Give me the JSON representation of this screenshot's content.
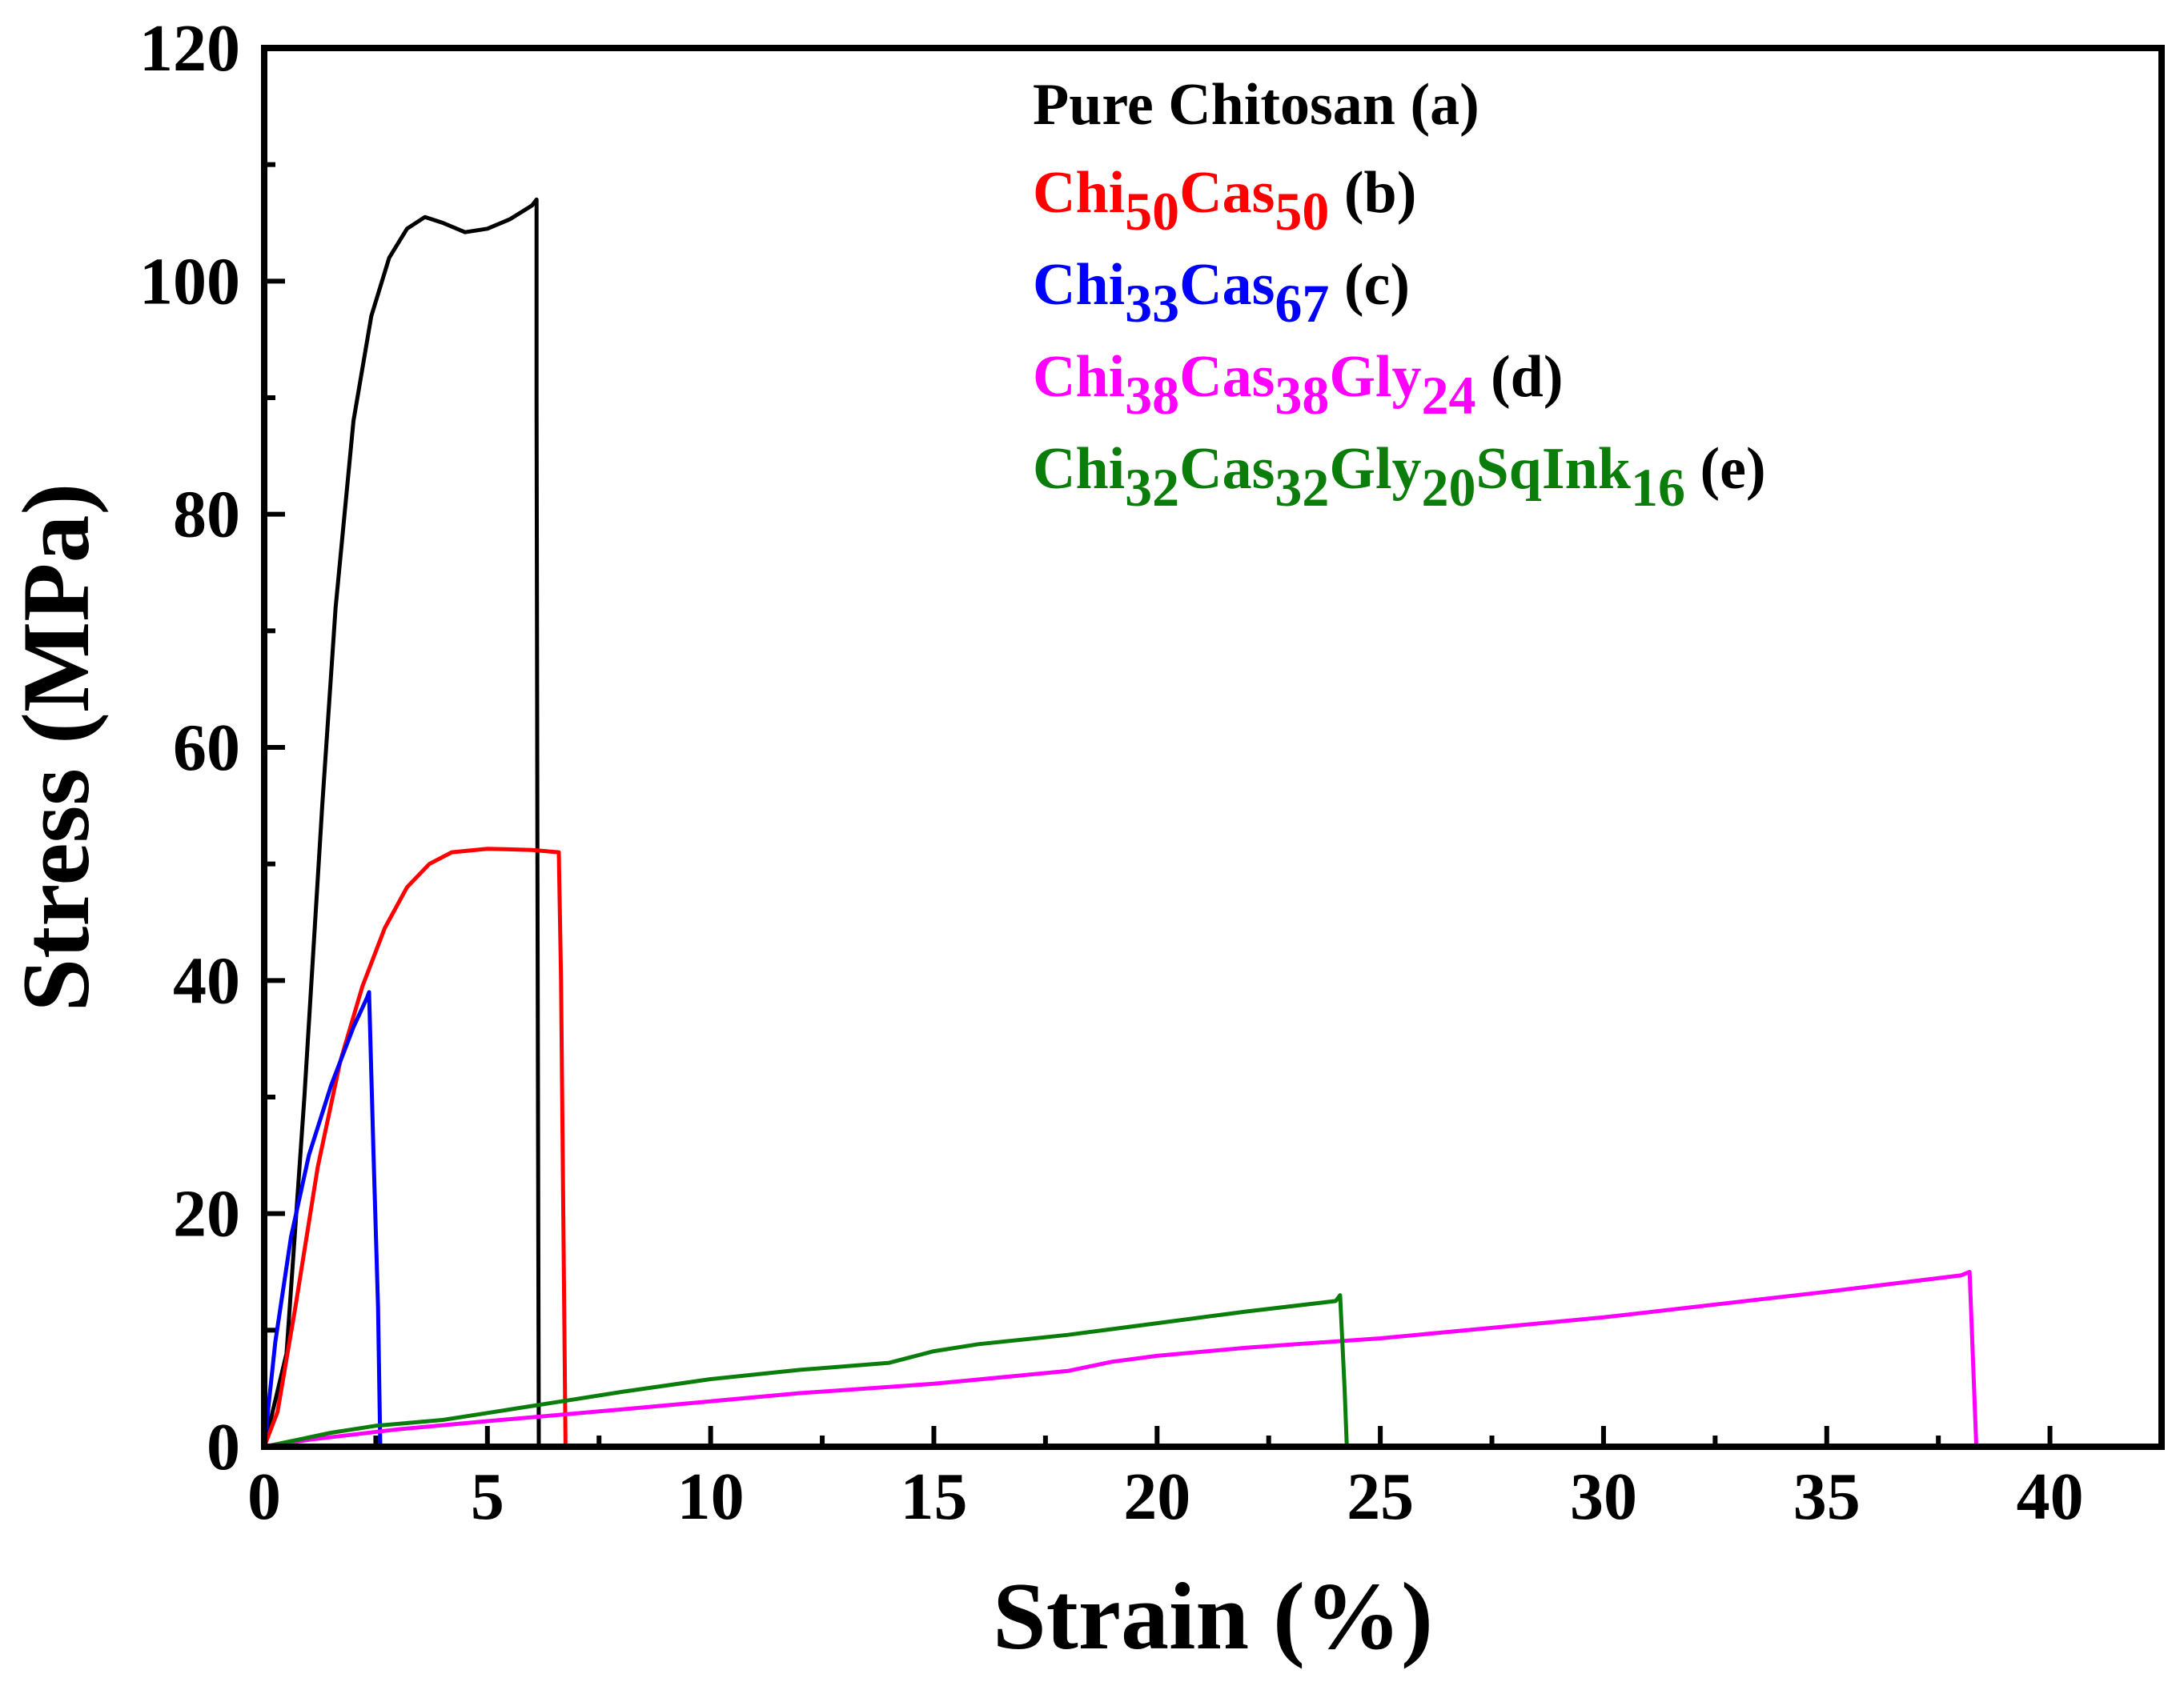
{
  "chart_data": {
    "type": "line",
    "title": "",
    "xlabel": "Strain (%)",
    "ylabel": "Stress (MPa)",
    "xlim": [
      0,
      42.5
    ],
    "ylim": [
      0,
      120
    ],
    "x_ticks": [
      0,
      5,
      10,
      15,
      20,
      25,
      30,
      35,
      40
    ],
    "y_ticks": [
      0,
      20,
      40,
      60,
      80,
      100,
      120
    ],
    "grid": false,
    "legend_position": "top-right",
    "series": [
      {
        "name": "Pure Chitosan (a)",
        "color": "#000000",
        "legend_parts": [
          {
            "text": "Pure Chitosan",
            "sub": false
          }
        ],
        "suffix": " (a)",
        "points": [
          [
            0,
            0
          ],
          [
            0.5,
            8
          ],
          [
            0.9,
            30
          ],
          [
            1.3,
            55
          ],
          [
            1.6,
            72
          ],
          [
            2.0,
            88
          ],
          [
            2.4,
            97
          ],
          [
            2.8,
            102
          ],
          [
            3.2,
            104.5
          ],
          [
            3.6,
            105.5
          ],
          [
            4.0,
            105
          ],
          [
            4.5,
            104.2
          ],
          [
            5.0,
            104.5
          ],
          [
            5.5,
            105.3
          ],
          [
            6.0,
            106.5
          ],
          [
            6.1,
            107
          ],
          [
            6.1,
            90
          ],
          [
            6.12,
            50
          ],
          [
            6.15,
            0
          ]
        ]
      },
      {
        "name": "Chi50Cas50 (b)",
        "color": "#ff0000",
        "legend_parts": [
          {
            "text": "Chi",
            "sub": false
          },
          {
            "text": "50",
            "sub": true
          },
          {
            "text": "Cas",
            "sub": false
          },
          {
            "text": "50",
            "sub": true
          }
        ],
        "suffix": " (b)",
        "points": [
          [
            0,
            0
          ],
          [
            0.3,
            3
          ],
          [
            0.7,
            12
          ],
          [
            1.2,
            24
          ],
          [
            1.7,
            33
          ],
          [
            2.2,
            39.5
          ],
          [
            2.7,
            44.5
          ],
          [
            3.2,
            48
          ],
          [
            3.7,
            50
          ],
          [
            4.2,
            51
          ],
          [
            5.0,
            51.3
          ],
          [
            6.0,
            51.2
          ],
          [
            6.6,
            51
          ],
          [
            6.65,
            40
          ],
          [
            6.7,
            20
          ],
          [
            6.75,
            0
          ]
        ]
      },
      {
        "name": "Chi33Cas67 (c)",
        "color": "#0000ff",
        "legend_parts": [
          {
            "text": "Chi",
            "sub": false
          },
          {
            "text": "33",
            "sub": true
          },
          {
            "text": "Cas",
            "sub": false
          },
          {
            "text": "67",
            "sub": true
          }
        ],
        "suffix": " (c)",
        "points": [
          [
            0,
            0
          ],
          [
            0.25,
            9
          ],
          [
            0.6,
            18
          ],
          [
            1.0,
            25
          ],
          [
            1.5,
            31
          ],
          [
            2.0,
            36
          ],
          [
            2.3,
            38.5
          ],
          [
            2.35,
            39
          ],
          [
            2.45,
            25
          ],
          [
            2.55,
            12
          ],
          [
            2.6,
            0
          ]
        ]
      },
      {
        "name": "Chi38Cas38Gly24 (d)",
        "color": "#ff00ff",
        "legend_parts": [
          {
            "text": "Chi",
            "sub": false
          },
          {
            "text": "38",
            "sub": true
          },
          {
            "text": "Cas",
            "sub": false
          },
          {
            "text": "38",
            "sub": true
          },
          {
            "text": "Gly",
            "sub": false
          },
          {
            "text": "24",
            "sub": true
          }
        ],
        "suffix": " (d)",
        "points": [
          [
            0,
            0
          ],
          [
            1,
            0.6
          ],
          [
            3,
            1.5
          ],
          [
            5,
            2.2
          ],
          [
            8,
            3.2
          ],
          [
            10,
            3.9
          ],
          [
            12,
            4.6
          ],
          [
            15,
            5.4
          ],
          [
            18,
            6.5
          ],
          [
            19,
            7.3
          ],
          [
            20,
            7.8
          ],
          [
            22,
            8.5
          ],
          [
            25,
            9.3
          ],
          [
            30,
            11.1
          ],
          [
            35,
            13.3
          ],
          [
            38,
            14.7
          ],
          [
            38.2,
            15
          ],
          [
            38.3,
            5
          ],
          [
            38.35,
            0
          ]
        ]
      },
      {
        "name": "Chi32Cas32Gly20SqInk16 (e)",
        "color": "#0a7d0a",
        "legend_parts": [
          {
            "text": "Chi",
            "sub": false
          },
          {
            "text": "32",
            "sub": true
          },
          {
            "text": "Cas",
            "sub": false
          },
          {
            "text": "32",
            "sub": true
          },
          {
            "text": "Gly",
            "sub": false
          },
          {
            "text": "20",
            "sub": true
          },
          {
            "text": "SqInk",
            "sub": false
          },
          {
            "text": "16",
            "sub": true
          }
        ],
        "suffix": " (e)",
        "points": [
          [
            0,
            0
          ],
          [
            0.5,
            0.4
          ],
          [
            1.5,
            1.2
          ],
          [
            2.5,
            1.8
          ],
          [
            4,
            2.3
          ],
          [
            5,
            2.9
          ],
          [
            7,
            4.1
          ],
          [
            8,
            4.7
          ],
          [
            10,
            5.8
          ],
          [
            12,
            6.6
          ],
          [
            14,
            7.2
          ],
          [
            15,
            8.2
          ],
          [
            16,
            8.8
          ],
          [
            18,
            9.6
          ],
          [
            20,
            10.6
          ],
          [
            22,
            11.6
          ],
          [
            24,
            12.5
          ],
          [
            24.1,
            13
          ],
          [
            24.2,
            5
          ],
          [
            24.25,
            0
          ]
        ]
      }
    ]
  }
}
